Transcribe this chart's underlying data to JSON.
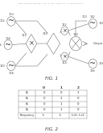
{
  "bg_color": "#ffffff",
  "header_text": "Patent Application Publication    Feb. 16, 2012   Sheet 1 of 3    US 2012/0038479 A1",
  "fig1_label": "FIG. 1",
  "fig2_label": "FIG. 2",
  "ec": "#444444",
  "lw": 0.3,
  "table_rows": [
    [
      "B₀",
      "0",
      "0",
      "1"
    ],
    [
      "B₁",
      "0",
      "1",
      "0"
    ],
    [
      "B₂",
      "0",
      "1",
      "0"
    ],
    [
      "B₃",
      "0",
      "1",
      "0"
    ],
    [
      "Frequency",
      "f₀",
      "f₁",
      "f₀/2, f₁/2"
    ]
  ],
  "col_labels": [
    "",
    "0",
    "1",
    "2"
  ]
}
